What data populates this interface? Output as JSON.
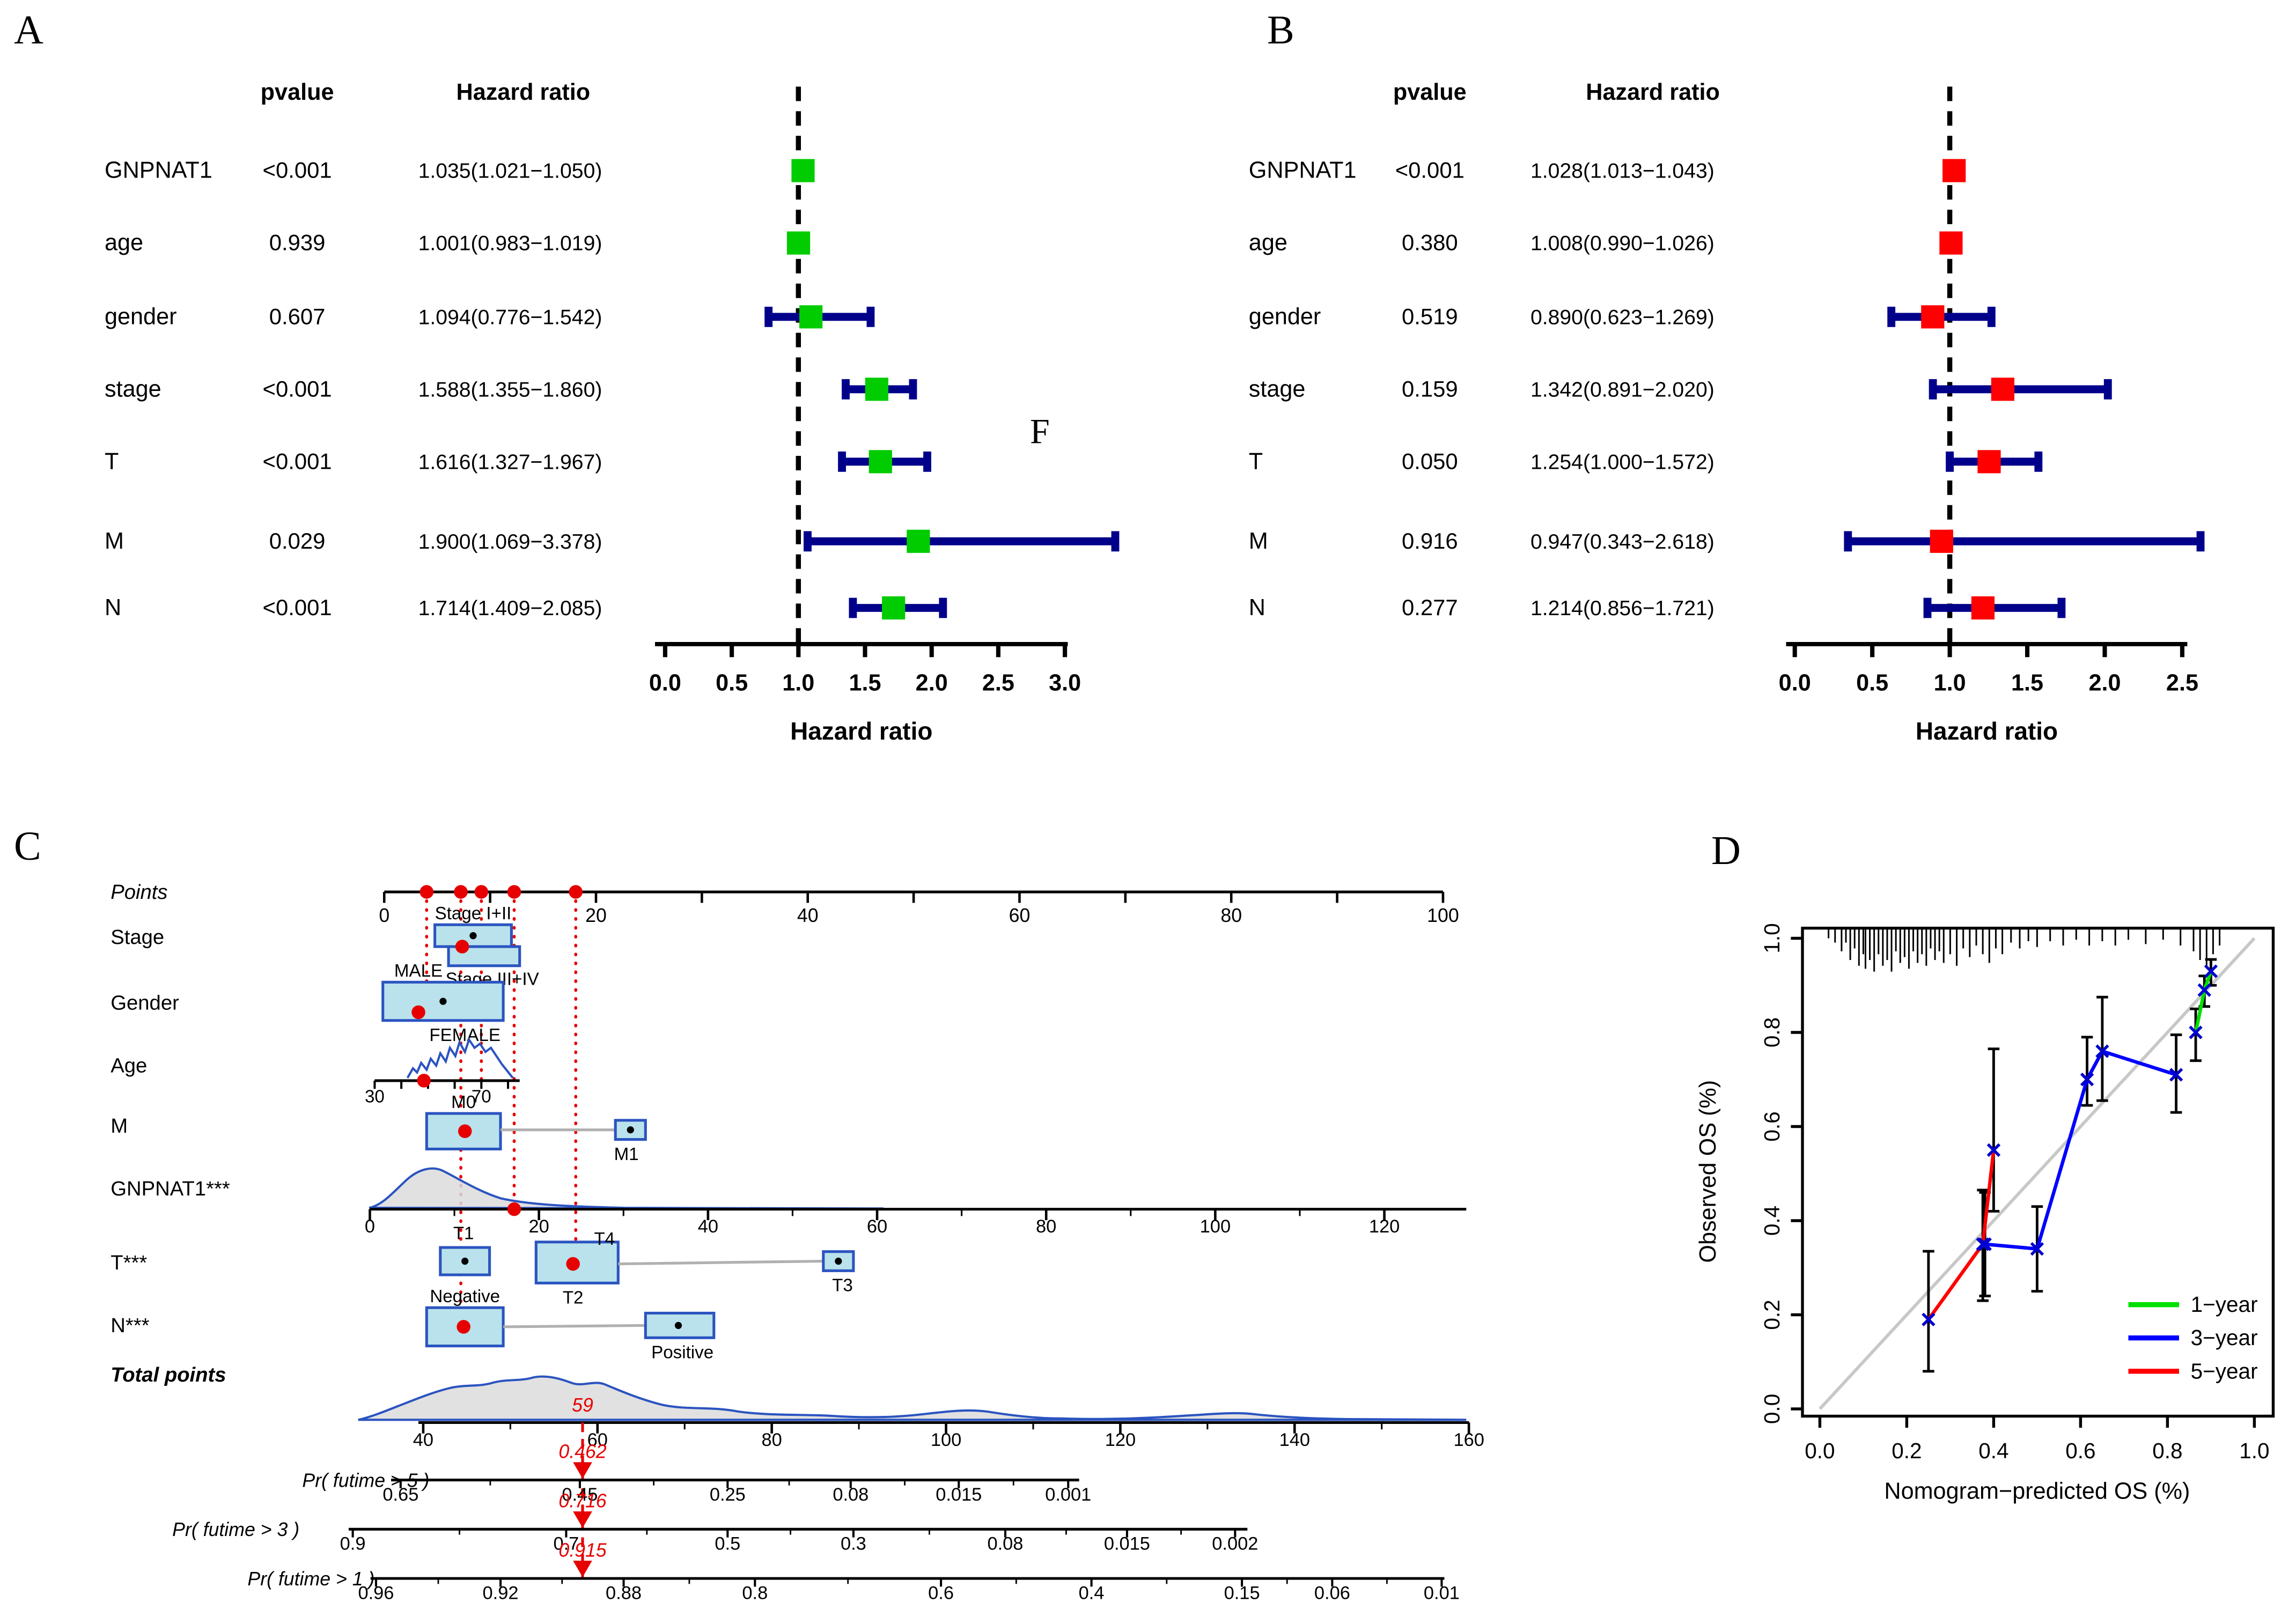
{
  "panel_labels": {
    "a": "A",
    "b": "B",
    "c": "C",
    "d": "D",
    "f": "F"
  },
  "chart_data": [
    {
      "panel": "A",
      "type": "forest",
      "description": "Forest plot of Cox regression (green markers)",
      "columns": {
        "pvalue": "pvalue",
        "hazard_ratio": "Hazard ratio"
      },
      "xlabel": "Hazard ratio",
      "x_ticks": [
        "0.0",
        "0.5",
        "1.0",
        "1.5",
        "2.0",
        "2.5",
        "3.0"
      ],
      "xlim": [
        0,
        3.4
      ],
      "ref_line": 1.0,
      "marker_color": "#00cc00",
      "ci_color": "#00008b",
      "rows": [
        {
          "label": "GNPNAT1",
          "pvalue": "<0.001",
          "hr_text": "1.035(1.021−1.050)",
          "hr": 1.035,
          "lo": 1.021,
          "hi": 1.05
        },
        {
          "label": "age",
          "pvalue": "0.939",
          "hr_text": "1.001(0.983−1.019)",
          "hr": 1.001,
          "lo": 0.983,
          "hi": 1.019
        },
        {
          "label": "gender",
          "pvalue": "0.607",
          "hr_text": "1.094(0.776−1.542)",
          "hr": 1.094,
          "lo": 0.776,
          "hi": 1.542
        },
        {
          "label": "stage",
          "pvalue": "<0.001",
          "hr_text": "1.588(1.355−1.860)",
          "hr": 1.588,
          "lo": 1.355,
          "hi": 1.86
        },
        {
          "label": "T",
          "pvalue": "<0.001",
          "hr_text": "1.616(1.327−1.967)",
          "hr": 1.616,
          "lo": 1.327,
          "hi": 1.967
        },
        {
          "label": "M",
          "pvalue": "0.029",
          "hr_text": "1.900(1.069−3.378)",
          "hr": 1.9,
          "lo": 1.069,
          "hi": 3.378
        },
        {
          "label": "N",
          "pvalue": "<0.001",
          "hr_text": "1.714(1.409−2.085)",
          "hr": 1.714,
          "lo": 1.409,
          "hi": 2.085
        }
      ]
    },
    {
      "panel": "B",
      "type": "forest",
      "description": "Forest plot of Cox regression (red markers)",
      "columns": {
        "pvalue": "pvalue",
        "hazard_ratio": "Hazard ratio"
      },
      "xlabel": "Hazard ratio",
      "x_ticks": [
        "0.0",
        "0.5",
        "1.0",
        "1.5",
        "2.0",
        "2.5"
      ],
      "xlim": [
        0,
        2.7
      ],
      "ref_line": 1.0,
      "marker_color": "#ff0000",
      "ci_color": "#00008b",
      "rows": [
        {
          "label": "GNPNAT1",
          "pvalue": "<0.001",
          "hr_text": "1.028(1.013−1.043)",
          "hr": 1.028,
          "lo": 1.013,
          "hi": 1.043
        },
        {
          "label": "age",
          "pvalue": "0.380",
          "hr_text": "1.008(0.990−1.026)",
          "hr": 1.008,
          "lo": 0.99,
          "hi": 1.026
        },
        {
          "label": "gender",
          "pvalue": "0.519",
          "hr_text": "0.890(0.623−1.269)",
          "hr": 0.89,
          "lo": 0.623,
          "hi": 1.269
        },
        {
          "label": "stage",
          "pvalue": "0.159",
          "hr_text": "1.342(0.891−2.020)",
          "hr": 1.342,
          "lo": 0.891,
          "hi": 2.02
        },
        {
          "label": "T",
          "pvalue": "0.050",
          "hr_text": "1.254(1.000−1.572)",
          "hr": 1.254,
          "lo": 1.0,
          "hi": 1.572
        },
        {
          "label": "M",
          "pvalue": "0.916",
          "hr_text": "0.947(0.343−2.618)",
          "hr": 0.947,
          "lo": 0.343,
          "hi": 2.618
        },
        {
          "label": "N",
          "pvalue": "0.277",
          "hr_text": "1.214(0.856−1.721)",
          "hr": 1.214,
          "lo": 0.856,
          "hi": 1.721
        }
      ]
    },
    {
      "panel": "C",
      "type": "nomogram",
      "description": "Nomogram predicting overall survival",
      "point_axis": {
        "label": "Points",
        "tick_labels": [
          "0",
          "20",
          "40",
          "60",
          "80",
          "100"
        ]
      },
      "rows": [
        {
          "label": "Stage",
          "kind": "categorical",
          "categories": [
            "Stage I+II",
            "Stage III+IV"
          ]
        },
        {
          "label": "Gender",
          "kind": "categorical",
          "categories": [
            "MALE",
            "FEMALE"
          ]
        },
        {
          "label": "Age",
          "kind": "continuous",
          "axis_labels": [
            "30",
            "70"
          ]
        },
        {
          "label": "M",
          "kind": "categorical",
          "categories": [
            "M0",
            "M1"
          ]
        },
        {
          "label": "GNPNAT1***",
          "kind": "continuous",
          "axis_labels": [
            "0",
            "20",
            "40",
            "60",
            "80",
            "100",
            "120"
          ]
        },
        {
          "label": "T***",
          "kind": "categorical",
          "categories": [
            "T1",
            "T2",
            "T3",
            "T4"
          ]
        },
        {
          "label": "N***",
          "kind": "categorical",
          "categories": [
            "Negative",
            "Positive"
          ]
        },
        {
          "label": "Total points",
          "kind": "axis",
          "axis_labels": [
            "40",
            "60",
            "80",
            "100",
            "120",
            "140",
            "160"
          ],
          "marker": "59"
        },
        {
          "label": "Pr( futime > 5 )",
          "kind": "prob_axis",
          "axis_labels": [
            "0.65",
            "0.45",
            "0.25",
            "0.08",
            "0.015",
            "0.001"
          ],
          "marker": "0.462"
        },
        {
          "label": "Pr( futime > 3 )",
          "kind": "prob_axis",
          "axis_labels": [
            "0.9",
            "0.7",
            "0.5",
            "0.3",
            "0.08",
            "0.015",
            "0.002"
          ],
          "marker": "0.716"
        },
        {
          "label": "Pr( futime > 1 )",
          "kind": "prob_axis",
          "axis_labels": [
            "0.96",
            "0.92",
            "0.88",
            "0.8",
            "0.6",
            "0.4",
            "0.15",
            "0.06",
            "0.01"
          ],
          "marker": "0.915"
        }
      ],
      "colors": {
        "box_fill": "#b9e2ec",
        "box_stroke": "#2b54c0",
        "marker": "#e60000",
        "connector": "#b0b0b0",
        "density_stroke": "#2b54c0",
        "density_fill": "#dcdcdc"
      }
    },
    {
      "panel": "D",
      "type": "line",
      "description": "Calibration plot: nomogram-predicted vs observed OS",
      "xlabel": "Nomogram−predicted OS (%)",
      "ylabel": "Observed OS (%)",
      "x_ticks": [
        "0.0",
        "0.2",
        "0.4",
        "0.6",
        "0.8",
        "1.0"
      ],
      "y_ticks": [
        "0.0",
        "0.2",
        "0.4",
        "0.6",
        "0.8",
        "1.0"
      ],
      "xlim": [
        0,
        1
      ],
      "ylim": [
        0,
        1
      ],
      "diagonal": true,
      "marker": "x",
      "marker_color": "#0000cd",
      "points_format": "[predicted, observed, ci_low, ci_high]",
      "legend": [
        {
          "label": "1−year",
          "color": "#00e000"
        },
        {
          "label": "3−year",
          "color": "#0000ff"
        },
        {
          "label": "5−year",
          "color": "#ff0000"
        }
      ],
      "series": [
        {
          "name": "3-year",
          "color": "#0000ff",
          "points": [
            [
              0.38,
              0.35,
              0.24,
              0.46
            ],
            [
              0.5,
              0.34,
              0.25,
              0.43
            ],
            [
              0.615,
              0.7,
              0.645,
              0.79
            ],
            [
              0.65,
              0.76,
              0.655,
              0.875
            ],
            [
              0.82,
              0.71,
              0.63,
              0.795
            ]
          ]
        },
        {
          "name": "5-year",
          "color": "#ff0000",
          "points": [
            [
              0.25,
              0.19,
              0.08,
              0.335
            ],
            [
              0.375,
              0.35,
              0.23,
              0.465
            ],
            [
              0.4,
              0.55,
              0.42,
              0.765
            ]
          ]
        },
        {
          "name": "1-year",
          "color": "#00e000",
          "points": [
            [
              0.865,
              0.8,
              0.74,
              0.85
            ],
            [
              0.885,
              0.89,
              0.855,
              0.92
            ],
            [
              0.9,
              0.93,
              0.9,
              0.955
            ]
          ]
        }
      ]
    }
  ]
}
